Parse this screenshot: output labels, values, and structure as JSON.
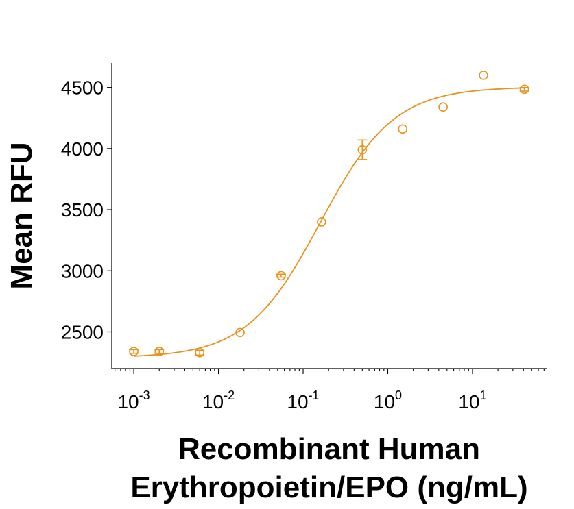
{
  "chart_data": {
    "type": "scatter",
    "xscale": "log",
    "xlim": [
      0.00055,
      75
    ],
    "ylim": [
      2200,
      4700
    ],
    "ylabel": "Mean RFU",
    "xlabel_lines": [
      "Recombinant Human",
      "Erythropoietin/EPO (ng/mL)"
    ],
    "yticks": [
      2500,
      3000,
      3500,
      4000,
      4500
    ],
    "xticks": [
      {
        "value": 0.001,
        "base": "10",
        "exp": "-3"
      },
      {
        "value": 0.01,
        "base": "10",
        "exp": "-2"
      },
      {
        "value": 0.1,
        "base": "10",
        "exp": "-1"
      },
      {
        "value": 1,
        "base": "10",
        "exp": "0"
      },
      {
        "value": 10,
        "base": "10",
        "exp": "1"
      }
    ],
    "color": "#E8921C",
    "points": [
      {
        "x": 0.001,
        "y": 2340,
        "err": 15
      },
      {
        "x": 0.002,
        "y": 2340,
        "err": 15
      },
      {
        "x": 0.006,
        "y": 2330,
        "err": 20
      },
      {
        "x": 0.018,
        "y": 2495,
        "err": 0
      },
      {
        "x": 0.055,
        "y": 2960,
        "err": 12
      },
      {
        "x": 0.165,
        "y": 3400,
        "err": 0
      },
      {
        "x": 0.5,
        "y": 3990,
        "err": 80
      },
      {
        "x": 1.5,
        "y": 4160,
        "err": 0
      },
      {
        "x": 4.5,
        "y": 4340,
        "err": 0
      },
      {
        "x": 13.5,
        "y": 4600,
        "err": 0
      },
      {
        "x": 41,
        "y": 4485,
        "err": 15
      }
    ],
    "fit": {
      "bottom": 2288,
      "top": 4505,
      "ec50": 0.16,
      "hill": 1.0
    }
  }
}
